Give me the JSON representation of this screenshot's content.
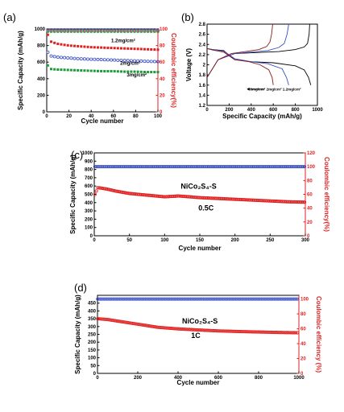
{
  "panels": [
    {
      "id": "a",
      "label": "(a)"
    },
    {
      "id": "b",
      "label": "(b)"
    },
    {
      "id": "c",
      "label": "(c)"
    },
    {
      "id": "d",
      "label": "(d)"
    }
  ],
  "chart_data": [
    {
      "panel": "a",
      "type": "scatter",
      "xlabel": "Cycle number",
      "ylabel": "Specific Capacity (mAh/g)",
      "y2label": "Coulombic efficiency(%)",
      "xlim": [
        0,
        100
      ],
      "ylim": [
        0,
        1000
      ],
      "y2lim": [
        0,
        100
      ],
      "xticks": [
        0,
        20,
        40,
        60,
        80,
        100
      ],
      "yticks": [
        0,
        200,
        400,
        600,
        800,
        1000
      ],
      "y2ticks": [
        0,
        20,
        40,
        60,
        80,
        100
      ],
      "annotations": [
        "1.2mg/cm²",
        "2mg/cm²",
        "3mg/cm²"
      ],
      "series": [
        {
          "label": "1.2mg/cm²",
          "color": "#e02020",
          "x": [
            1,
            2,
            5,
            10,
            20,
            30,
            40,
            50,
            60,
            70,
            80,
            90,
            100
          ],
          "y": [
            930,
            860,
            840,
            820,
            800,
            790,
            780,
            775,
            770,
            765,
            760,
            755,
            750
          ]
        },
        {
          "label": "2mg/cm²",
          "color": "#3a4fc4",
          "x": [
            1,
            2,
            5,
            10,
            20,
            30,
            40,
            50,
            60,
            70,
            80,
            90,
            100
          ],
          "y": [
            720,
            680,
            670,
            660,
            650,
            640,
            635,
            630,
            625,
            620,
            615,
            610,
            605
          ]
        },
        {
          "label": "3mg/cm²",
          "color": "#1f9a3a",
          "x": [
            1,
            2,
            5,
            10,
            20,
            30,
            40,
            50,
            60,
            70,
            80,
            90,
            100
          ],
          "y": [
            560,
            520,
            515,
            510,
            505,
            500,
            495,
            490,
            490,
            485,
            485,
            480,
            480
          ]
        }
      ],
      "efficiency_series": [
        {
          "color": "#e02020",
          "y": 98
        },
        {
          "color": "#3a4fc4",
          "y": 99
        },
        {
          "color": "#1f9a3a",
          "y": 97
        }
      ]
    },
    {
      "panel": "b",
      "type": "line",
      "xlabel": "Specific Capacity (mAh/g)",
      "ylabel": "Voltage (V)",
      "xlim": [
        0,
        1000
      ],
      "ylim": [
        1.2,
        2.8
      ],
      "xticks": [
        0,
        200,
        400,
        600,
        800,
        1000
      ],
      "yticks": [
        1.2,
        1.4,
        1.6,
        1.8,
        2.0,
        2.2,
        2.4,
        2.6,
        2.8
      ],
      "legend_text": "3mg/cm² 2mg/cm² 1.2mg/cm²",
      "series": [
        {
          "label": "1.2mg/cm²",
          "color": "#000000",
          "discharge": {
            "x": [
              0,
              50,
              150,
              250,
              400,
              600,
              800,
              880,
              920,
              940
            ],
            "y": [
              2.32,
              2.3,
              2.28,
              2.1,
              2.06,
              2.04,
              1.98,
              1.9,
              1.75,
              1.6
            ]
          },
          "charge": {
            "x": [
              0,
              100,
              250,
              450,
              650,
              800,
              880,
              910,
              925,
              930
            ],
            "y": [
              1.75,
              2.1,
              2.22,
              2.24,
              2.26,
              2.3,
              2.35,
              2.42,
              2.6,
              2.8
            ]
          }
        },
        {
          "label": "2mg/cm²",
          "color": "#3a4fc4",
          "discharge": {
            "x": [
              0,
              50,
              150,
              250,
              400,
              550,
              680,
              720,
              740
            ],
            "y": [
              2.32,
              2.3,
              2.27,
              2.12,
              2.06,
              2.02,
              1.92,
              1.75,
              1.6
            ]
          },
          "charge": {
            "x": [
              0,
              100,
              250,
              400,
              550,
              650,
              700,
              725,
              740
            ],
            "y": [
              1.75,
              2.1,
              2.22,
              2.25,
              2.28,
              2.34,
              2.42,
              2.6,
              2.8
            ]
          }
        },
        {
          "label": "3mg/cm²",
          "color": "#8b1a1a",
          "discharge": {
            "x": [
              0,
              50,
              150,
              250,
              380,
              480,
              560,
              590,
              600
            ],
            "y": [
              2.32,
              2.29,
              2.25,
              2.1,
              2.06,
              2.0,
              1.9,
              1.75,
              1.6
            ]
          },
          "charge": {
            "x": [
              0,
              100,
              220,
              350,
              470,
              540,
              570,
              585,
              595
            ],
            "y": [
              1.75,
              2.1,
              2.22,
              2.26,
              2.3,
              2.36,
              2.45,
              2.6,
              2.8
            ]
          }
        }
      ]
    },
    {
      "panel": "c",
      "type": "scatter",
      "xlabel": "Cycle number",
      "ylabel": "Specific Capacity (mAh/g)",
      "y2label": "Coulombic efficiency(%)",
      "xlim": [
        0,
        300
      ],
      "ylim": [
        0,
        1000
      ],
      "y2lim": [
        0,
        120
      ],
      "xticks": [
        0,
        50,
        100,
        150,
        200,
        250,
        300
      ],
      "yticks": [
        0,
        100,
        200,
        300,
        400,
        500,
        600,
        700,
        800,
        900,
        1000
      ],
      "y2ticks": [
        0,
        20,
        40,
        60,
        80,
        100,
        120
      ],
      "annotations": [
        "NiCo₂S₄-S",
        "0.5C"
      ],
      "capacity": {
        "x": [
          1,
          5,
          10,
          20,
          30,
          50,
          75,
          100,
          120,
          150,
          175,
          200,
          225,
          250,
          275,
          300
        ],
        "y": [
          500,
          580,
          575,
          560,
          540,
          510,
          490,
          470,
          480,
          460,
          450,
          440,
          430,
          420,
          410,
          405
        ]
      },
      "efficiency": {
        "x": [
          1,
          50,
          100,
          150,
          200,
          250,
          300
        ],
        "y": [
          100,
          100,
          100,
          100,
          100,
          100,
          100
        ]
      }
    },
    {
      "panel": "d",
      "type": "scatter",
      "xlabel": "Cycle number",
      "ylabel": "Specific Capacity (mAh/g)",
      "y2label": "Coulombic efficiency (%)",
      "xlim": [
        0,
        1000
      ],
      "ylim": [
        0,
        500
      ],
      "y2lim": [
        0,
        105
      ],
      "xticks": [
        0,
        200,
        400,
        600,
        800,
        1000
      ],
      "yticks": [
        0,
        50,
        100,
        150,
        200,
        250,
        300,
        350,
        400,
        450
      ],
      "y2ticks": [
        0,
        20,
        40,
        60,
        80,
        100
      ],
      "annotations": [
        "NiCo₂S₄-S",
        "1C"
      ],
      "capacity": {
        "x": [
          1,
          50,
          100,
          200,
          300,
          400,
          500,
          600,
          700,
          800,
          900,
          1000
        ],
        "y": [
          350,
          345,
          335,
          315,
          295,
          285,
          278,
          272,
          268,
          265,
          262,
          260
        ]
      },
      "efficiency": {
        "x": [
          1,
          200,
          400,
          600,
          800,
          1000
        ],
        "y": [
          100,
          100,
          100,
          100,
          100,
          100
        ]
      }
    }
  ]
}
